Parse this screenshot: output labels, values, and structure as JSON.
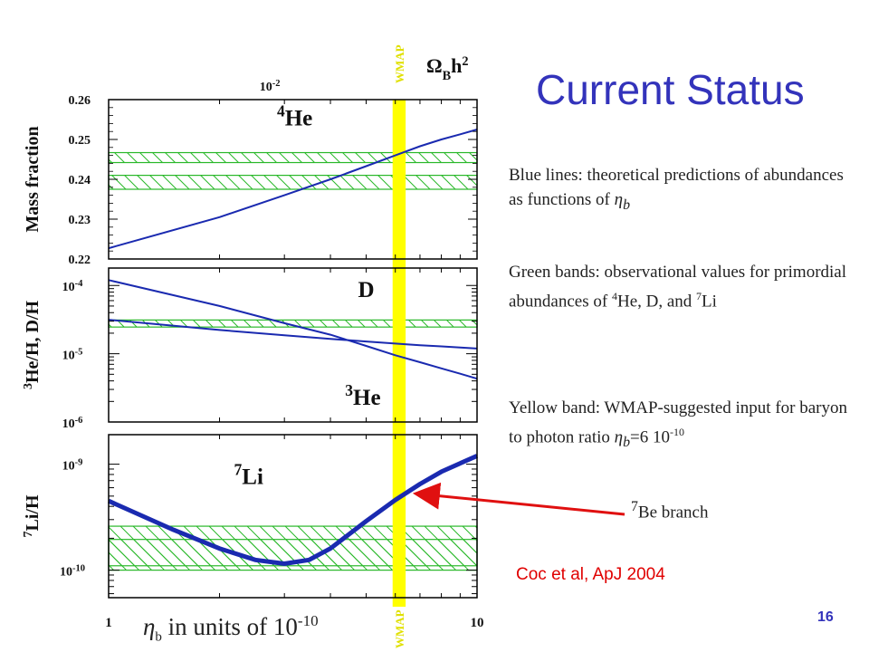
{
  "slide": {
    "title": "Current Status",
    "desc_blue": {
      "text": "Blue lines: theoretical predictions of abundances as functions of",
      "symbol": "η",
      "subscript": "b"
    },
    "desc_green": {
      "text1": "Green bands: observational values for primordial abundances of",
      "sup1": "4",
      "text2": "He, D, and",
      "sup2": "7",
      "text3": "Li"
    },
    "desc_yellow": {
      "text1": "Yellow band: WMAP-suggested input for baryon to photon ratio",
      "symbol": "η",
      "subscript": "b",
      "text2": "=6 10",
      "sup": "-10"
    },
    "branch_label": {
      "sup": "7",
      "text": "Be branch"
    },
    "citation": "Coc et al, ApJ 2004",
    "page_number": "16",
    "x_caption": {
      "symbol": "η",
      "subscript": "b",
      "text": " in units of 10",
      "sup": "-10"
    }
  },
  "colors": {
    "theory": "#1a2ab0",
    "band": "#29b829",
    "wmap": "#ffff00",
    "arrow": "#e01010",
    "title": "#3333bb"
  },
  "chart_data": {
    "type": "line",
    "x_scale": "log",
    "xlim": [
      1,
      10
    ],
    "x_tick_labels": [
      "1",
      "10"
    ],
    "top_axis": {
      "label": "Ω",
      "label_sub": "B",
      "label_rest": "h",
      "label_sup": "2",
      "tick_label": "10",
      "tick_label_sup": "-2",
      "tick_at_eta": 2.74
    },
    "wmap_band": {
      "label": "WMAP",
      "eta_range": [
        5.9,
        6.4
      ]
    },
    "panels": [
      {
        "name": "helium-4",
        "ylabel": "Mass fraction",
        "y_scale": "linear",
        "ylim": [
          0.22,
          0.26
        ],
        "y_ticks": [
          0.22,
          0.23,
          0.24,
          0.25,
          0.26
        ],
        "y_tick_labels": [
          "0.22",
          "0.23",
          "0.24",
          "0.25",
          "0.26"
        ],
        "series": [
          {
            "label": "He",
            "label_sup": "4",
            "label_pos": [
              3.2,
              0.2535
            ],
            "x": [
              1,
              2,
              3,
              4,
              5,
              6,
              7,
              8,
              9,
              10
            ],
            "y": [
              0.2227,
              0.2305,
              0.236,
              0.24,
              0.2433,
              0.246,
              0.2483,
              0.25,
              0.2513,
              0.2525
            ]
          }
        ],
        "bands": [
          {
            "range": [
              0.2442,
              0.2467
            ]
          },
          {
            "range": [
              0.2375,
              0.241
            ]
          }
        ]
      },
      {
        "name": "deuterium-helium-3",
        "ylabel": "He/H, D/H",
        "ylabel_sup": "3",
        "y_scale": "log",
        "ylim": [
          1e-06,
          0.00018
        ],
        "y_tick_labels": [
          {
            "base": "10",
            "exp": "-4",
            "value": 0.0001
          },
          {
            "base": "10",
            "exp": "-5",
            "value": 1e-05
          },
          {
            "base": "10",
            "exp": "-6",
            "value": 1e-06
          }
        ],
        "series": [
          {
            "label": "D",
            "label_pos": [
              5.0,
              6.8e-05
            ],
            "x": [
              1,
              2,
              3,
              4,
              5,
              6,
              7,
              8,
              9,
              10
            ],
            "y": [
              0.00012,
              5e-05,
              2.8e-05,
              1.9e-05,
              1.3e-05,
              9.5e-06,
              7.5e-06,
              6.1e-06,
              5.1e-06,
              4.3e-06
            ]
          },
          {
            "label": "He",
            "label_sup": "3",
            "label_pos": [
              4.9,
              1.8e-06
            ],
            "x": [
              1,
              2,
              3,
              4,
              5,
              6,
              7,
              8,
              9,
              10
            ],
            "y": [
              3.15e-05,
              2.23e-05,
              1.86e-05,
              1.65e-05,
              1.51e-05,
              1.41e-05,
              1.33e-05,
              1.28e-05,
              1.23e-05,
              1.19e-05
            ]
          }
        ],
        "bands": [
          {
            "range": [
              2.46e-05,
              3.12e-05
            ]
          }
        ]
      },
      {
        "name": "lithium-7",
        "ylabel": "Li/H",
        "ylabel_sup": "7",
        "y_scale": "log",
        "ylim": [
          5.5e-11,
          1.9e-09
        ],
        "y_tick_labels": [
          {
            "base": "10",
            "exp": "-9",
            "value": 1e-09
          },
          {
            "base": "10",
            "exp": "-10",
            "value": 1e-10
          }
        ],
        "series": [
          {
            "label": "Li",
            "label_sup": "7",
            "label_pos": [
              2.4,
              6.5e-10
            ],
            "x": [
              1,
              1.5,
              2,
              2.5,
              3,
              3.5,
              4,
              5,
              6,
              7,
              8,
              9,
              10
            ],
            "y": [
              4.5e-10,
              2.4e-10,
              1.6e-10,
              1.25e-10,
              1.15e-10,
              1.25e-10,
              1.6e-10,
              2.9e-10,
              4.6e-10,
              6.5e-10,
              8.5e-10,
              1.02e-09,
              1.2e-09
            ]
          }
        ],
        "bands": [
          {
            "range": [
              1.1e-10,
              1.95e-10
            ]
          },
          {
            "range": [
              1e-10,
              2.6e-10
            ]
          }
        ]
      }
    ],
    "annotation": {
      "text": "Be branch",
      "text_sup": "7",
      "points_to": [
        6.5,
        5.5e-10
      ]
    }
  }
}
